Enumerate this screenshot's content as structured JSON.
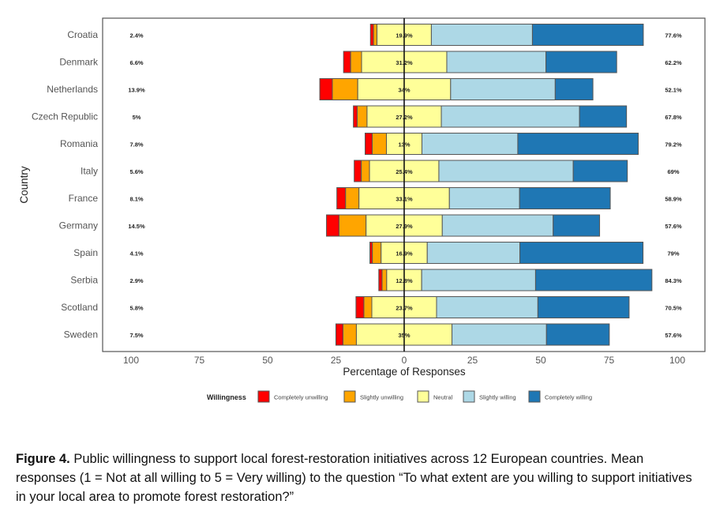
{
  "chart_data": {
    "type": "bar",
    "subtype": "diverging-stacked-horizontal",
    "title": "",
    "xlabel": "Percentage of Responses",
    "ylabel": "Country",
    "xlim": [
      -100,
      100
    ],
    "xticks": [
      -100,
      -75,
      -50,
      -25,
      0,
      25,
      50,
      75,
      100
    ],
    "xtick_labels": [
      "100",
      "75",
      "50",
      "25",
      "0",
      "25",
      "50",
      "75",
      "100"
    ],
    "grid": false,
    "legend": {
      "title": "Willingness",
      "placement": "bottom",
      "entries": [
        {
          "name": "Completely unwilling",
          "color": "#ff0000"
        },
        {
          "name": "Slightly unwilling",
          "color": "#ffa500"
        },
        {
          "name": "Neutral",
          "color": "#ffff99"
        },
        {
          "name": "Slightly willing",
          "color": "#add8e6"
        },
        {
          "name": "Completely willing",
          "color": "#1f77b4"
        }
      ]
    },
    "categories": [
      "Croatia",
      "Denmark",
      "Netherlands",
      "Czech Republic",
      "Romania",
      "Italy",
      "France",
      "Germany",
      "Spain",
      "Serbia",
      "Scotland",
      "Sweden"
    ],
    "series": [
      {
        "name": "Completely unwilling",
        "values": [
          1.1,
          2.6,
          4.6,
          1.4,
          2.6,
          2.6,
          3.2,
          4.6,
          0.9,
          1.2,
          2.9,
          2.6
        ]
      },
      {
        "name": "Slightly unwilling",
        "values": [
          1.3,
          4.0,
          9.3,
          3.6,
          5.2,
          3.0,
          4.9,
          9.9,
          3.2,
          1.7,
          2.9,
          4.9
        ]
      },
      {
        "name": "Neutral",
        "values": [
          19.9,
          31.2,
          34,
          27.2,
          13,
          25.4,
          33.1,
          27.9,
          16.9,
          12.8,
          23.7,
          35
        ]
      },
      {
        "name": "Slightly willing",
        "values": [
          37.0,
          36.3,
          38.3,
          50.6,
          35.1,
          49.2,
          25.7,
          40.6,
          33.9,
          41.7,
          37.1,
          34.6
        ]
      },
      {
        "name": "Completely willing",
        "values": [
          40.6,
          25.9,
          13.8,
          17.2,
          44.1,
          19.8,
          33.2,
          17.0,
          45.1,
          42.6,
          33.4,
          23.0
        ]
      }
    ],
    "labels_left": [
      "2.4%",
      "6.6%",
      "13.9%",
      "5%",
      "7.8%",
      "5.6%",
      "8.1%",
      "14.5%",
      "4.1%",
      "2.9%",
      "5.8%",
      "7.5%"
    ],
    "labels_center": [
      "19.9%",
      "31.2%",
      "34%",
      "27.2%",
      "13%",
      "25.4%",
      "33.1%",
      "27.9%",
      "16.9%",
      "12.8%",
      "23.7%",
      "35%"
    ],
    "labels_right": [
      "77.6%",
      "62.2%",
      "52.1%",
      "67.8%",
      "79.2%",
      "69%",
      "58.9%",
      "57.6%",
      "79%",
      "84.3%",
      "70.5%",
      "57.6%"
    ]
  },
  "caption": {
    "label": "Figure 4.",
    "text": " Public willingness to support local forest-restoration initiatives across 12 European countries. Mean responses (1 = Not at all willing to 5 = Very willing) to the question “To what extent are you willing to support initiatives in your local area to promote forest restoration?”"
  }
}
